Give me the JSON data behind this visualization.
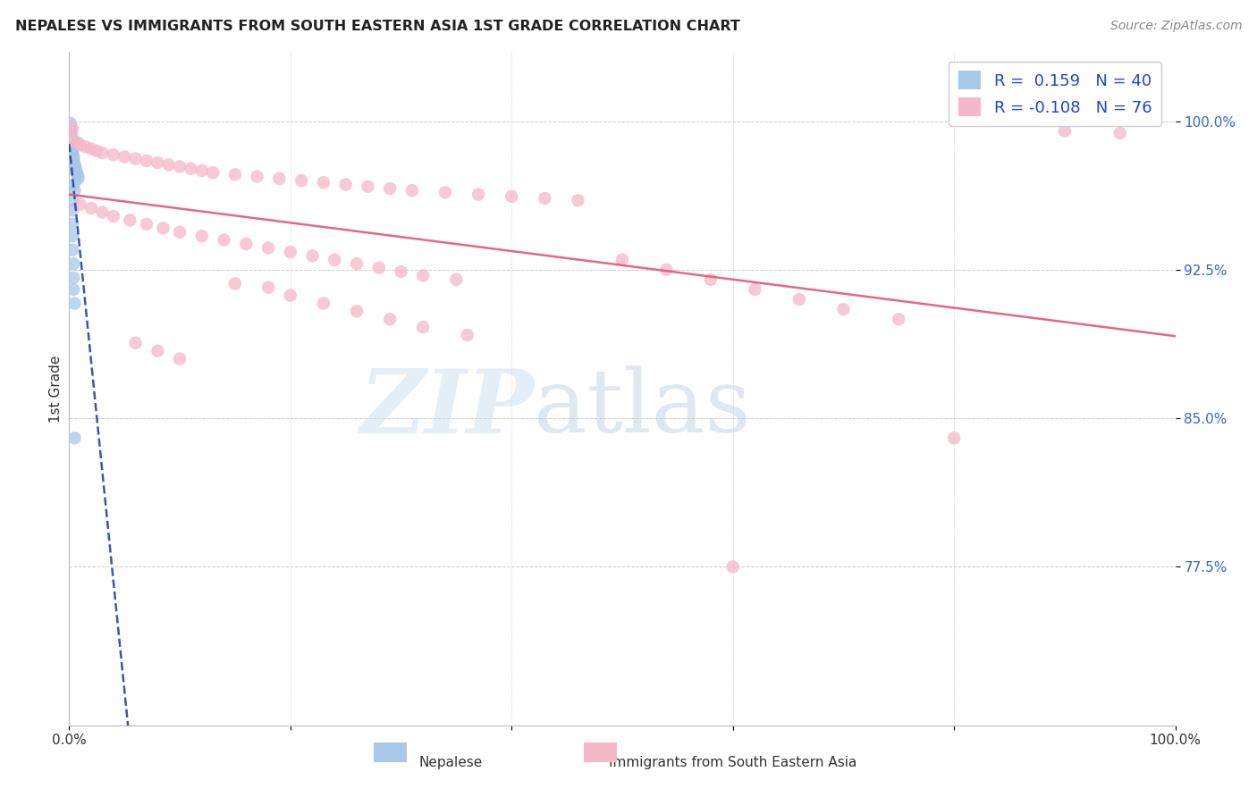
{
  "title": "NEPALESE VS IMMIGRANTS FROM SOUTH EASTERN ASIA 1ST GRADE CORRELATION CHART",
  "source": "Source: ZipAtlas.com",
  "ylabel": "1st Grade",
  "ytick_labels": [
    "77.5%",
    "85.0%",
    "92.5%",
    "100.0%"
  ],
  "ytick_values": [
    0.775,
    0.85,
    0.925,
    1.0
  ],
  "xmin": 0.0,
  "xmax": 1.0,
  "ymin": 0.695,
  "ymax": 1.035,
  "blue_R": 0.159,
  "blue_N": 40,
  "pink_R": -0.108,
  "pink_N": 76,
  "nepalese_color": "#a8c8e8",
  "pink_color": "#f4b8c8",
  "blue_line_color": "#2244aa",
  "pink_line_color": "#e05878",
  "nepalese_points": [
    [
      0.001,
      0.999
    ],
    [
      0.002,
      0.997
    ],
    [
      0.001,
      0.996
    ],
    [
      0.001,
      0.995
    ],
    [
      0.001,
      0.994
    ],
    [
      0.002,
      0.993
    ],
    [
      0.001,
      0.992
    ],
    [
      0.002,
      0.991
    ],
    [
      0.001,
      0.99
    ],
    [
      0.002,
      0.989
    ],
    [
      0.002,
      0.988
    ],
    [
      0.003,
      0.987
    ],
    [
      0.002,
      0.986
    ],
    [
      0.003,
      0.985
    ],
    [
      0.003,
      0.984
    ],
    [
      0.003,
      0.983
    ],
    [
      0.004,
      0.982
    ],
    [
      0.003,
      0.981
    ],
    [
      0.004,
      0.98
    ],
    [
      0.004,
      0.979
    ],
    [
      0.005,
      0.978
    ],
    [
      0.005,
      0.977
    ],
    [
      0.006,
      0.976
    ],
    [
      0.006,
      0.975
    ],
    [
      0.007,
      0.974
    ],
    [
      0.007,
      0.973
    ],
    [
      0.008,
      0.972
    ],
    [
      0.008,
      0.971
    ],
    [
      0.004,
      0.968
    ],
    [
      0.005,
      0.965
    ],
    [
      0.003,
      0.96
    ],
    [
      0.003,
      0.955
    ],
    [
      0.003,
      0.948
    ],
    [
      0.003,
      0.942
    ],
    [
      0.003,
      0.935
    ],
    [
      0.004,
      0.928
    ],
    [
      0.004,
      0.921
    ],
    [
      0.004,
      0.915
    ],
    [
      0.005,
      0.908
    ],
    [
      0.005,
      0.84
    ]
  ],
  "pink_points": [
    [
      0.001,
      0.998
    ],
    [
      0.003,
      0.996
    ],
    [
      0.9,
      0.995
    ],
    [
      0.95,
      0.994
    ],
    [
      0.001,
      0.992
    ],
    [
      0.005,
      0.99
    ],
    [
      0.008,
      0.989
    ],
    [
      0.01,
      0.988
    ],
    [
      0.015,
      0.987
    ],
    [
      0.02,
      0.986
    ],
    [
      0.025,
      0.985
    ],
    [
      0.03,
      0.984
    ],
    [
      0.04,
      0.983
    ],
    [
      0.05,
      0.982
    ],
    [
      0.06,
      0.981
    ],
    [
      0.07,
      0.98
    ],
    [
      0.08,
      0.979
    ],
    [
      0.09,
      0.978
    ],
    [
      0.1,
      0.977
    ],
    [
      0.11,
      0.976
    ],
    [
      0.12,
      0.975
    ],
    [
      0.13,
      0.974
    ],
    [
      0.15,
      0.973
    ],
    [
      0.17,
      0.972
    ],
    [
      0.19,
      0.971
    ],
    [
      0.21,
      0.97
    ],
    [
      0.23,
      0.969
    ],
    [
      0.25,
      0.968
    ],
    [
      0.27,
      0.967
    ],
    [
      0.29,
      0.966
    ],
    [
      0.31,
      0.965
    ],
    [
      0.34,
      0.964
    ],
    [
      0.37,
      0.963
    ],
    [
      0.4,
      0.962
    ],
    [
      0.43,
      0.961
    ],
    [
      0.46,
      0.96
    ],
    [
      0.01,
      0.958
    ],
    [
      0.02,
      0.956
    ],
    [
      0.03,
      0.954
    ],
    [
      0.04,
      0.952
    ],
    [
      0.055,
      0.95
    ],
    [
      0.07,
      0.948
    ],
    [
      0.085,
      0.946
    ],
    [
      0.1,
      0.944
    ],
    [
      0.12,
      0.942
    ],
    [
      0.14,
      0.94
    ],
    [
      0.16,
      0.938
    ],
    [
      0.18,
      0.936
    ],
    [
      0.2,
      0.934
    ],
    [
      0.22,
      0.932
    ],
    [
      0.24,
      0.93
    ],
    [
      0.26,
      0.928
    ],
    [
      0.28,
      0.926
    ],
    [
      0.3,
      0.924
    ],
    [
      0.32,
      0.922
    ],
    [
      0.35,
      0.92
    ],
    [
      0.15,
      0.918
    ],
    [
      0.18,
      0.916
    ],
    [
      0.2,
      0.912
    ],
    [
      0.23,
      0.908
    ],
    [
      0.26,
      0.904
    ],
    [
      0.29,
      0.9
    ],
    [
      0.32,
      0.896
    ],
    [
      0.36,
      0.892
    ],
    [
      0.06,
      0.888
    ],
    [
      0.08,
      0.884
    ],
    [
      0.1,
      0.88
    ],
    [
      0.5,
      0.93
    ],
    [
      0.54,
      0.925
    ],
    [
      0.58,
      0.92
    ],
    [
      0.62,
      0.915
    ],
    [
      0.66,
      0.91
    ],
    [
      0.7,
      0.905
    ],
    [
      0.75,
      0.9
    ],
    [
      0.6,
      0.775
    ],
    [
      0.8,
      0.84
    ]
  ]
}
